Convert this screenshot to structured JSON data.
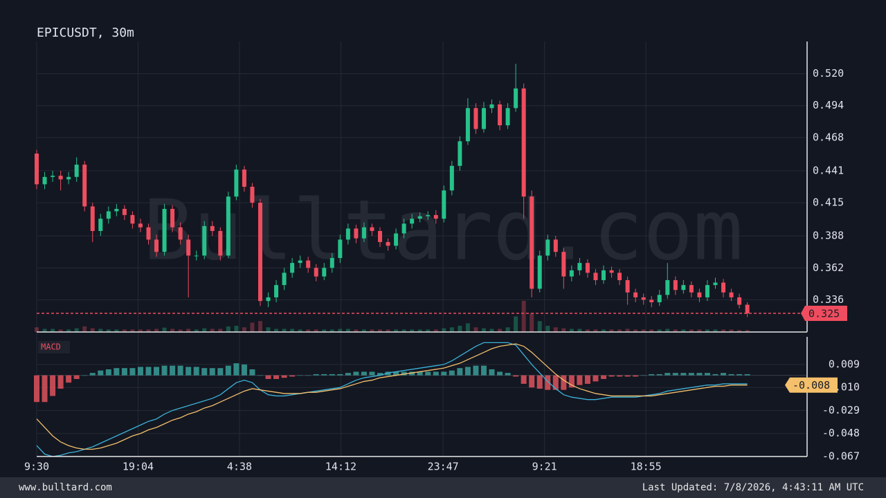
{
  "chart_data": [
    {
      "type": "candlestick",
      "title": "EPICUSDT, 30m",
      "watermark": "Bulltard.com",
      "xlim": [
        0,
        96.4
      ],
      "xticks": [
        {
          "value": 0,
          "label": "9:30"
        },
        {
          "value": 12.7,
          "label": "19:04"
        },
        {
          "value": 25.4,
          "label": "4:38"
        },
        {
          "value": 38.1,
          "label": "14:12"
        },
        {
          "value": 50.9,
          "label": "23:47"
        },
        {
          "value": 63.6,
          "label": "9:21"
        },
        {
          "value": 76.3,
          "label": "18:55"
        }
      ],
      "ylim": [
        0.3098,
        0.5462
      ],
      "yticks": [
        0.336,
        0.362,
        0.388,
        0.415,
        0.441,
        0.468,
        0.494,
        {
          "value": 0.52,
          "label": "0.520"
        }
      ],
      "grid": true,
      "up_color": "#26c28a",
      "down_color": "#ef4d5f",
      "open": [
        0.455,
        0.43,
        0.436,
        0.437,
        0.434,
        0.436,
        0.446,
        0.412,
        0.392,
        0.402,
        0.408,
        0.41,
        0.405,
        0.398,
        0.395,
        0.385,
        0.375,
        0.41,
        0.395,
        0.385,
        0.372,
        0.372,
        0.396,
        0.392,
        0.372,
        0.42,
        0.442,
        0.428,
        0.415,
        0.335,
        0.338,
        0.348,
        0.358,
        0.366,
        0.368,
        0.362,
        0.355,
        0.362,
        0.37,
        0.385,
        0.394,
        0.386,
        0.395,
        0.392,
        0.383,
        0.38,
        0.39,
        0.398,
        0.402,
        0.404,
        0.405,
        0.402,
        0.425,
        0.445,
        0.465,
        0.492,
        0.475,
        0.492,
        0.495,
        0.478,
        0.492,
        0.508,
        0.42,
        0.345,
        0.372,
        0.385,
        0.375,
        0.355,
        0.36,
        0.366,
        0.358,
        0.352,
        0.36,
        0.358,
        0.352,
        0.342,
        0.338,
        0.336,
        0.334,
        0.34,
        0.352,
        0.344,
        0.348,
        0.342,
        0.338,
        0.348,
        0.35,
        0.342,
        0.338,
        0.332
      ],
      "high": [
        0.458,
        0.44,
        0.441,
        0.441,
        0.44,
        0.452,
        0.449,
        0.415,
        0.406,
        0.412,
        0.414,
        0.413,
        0.408,
        0.402,
        0.398,
        0.389,
        0.414,
        0.413,
        0.399,
        0.389,
        0.376,
        0.4,
        0.4,
        0.395,
        0.424,
        0.446,
        0.445,
        0.431,
        0.418,
        0.342,
        0.352,
        0.362,
        0.37,
        0.372,
        0.371,
        0.365,
        0.366,
        0.374,
        0.389,
        0.398,
        0.397,
        0.399,
        0.398,
        0.395,
        0.386,
        0.394,
        0.402,
        0.406,
        0.407,
        0.408,
        0.409,
        0.429,
        0.449,
        0.469,
        0.5,
        0.496,
        0.497,
        0.499,
        0.498,
        0.496,
        0.528,
        0.512,
        0.425,
        0.376,
        0.389,
        0.388,
        0.378,
        0.364,
        0.37,
        0.369,
        0.361,
        0.364,
        0.363,
        0.361,
        0.355,
        0.345,
        0.341,
        0.339,
        0.344,
        0.366,
        0.355,
        0.352,
        0.351,
        0.345,
        0.352,
        0.354,
        0.353,
        0.345,
        0.341,
        0.334
      ],
      "low": [
        0.426,
        0.426,
        0.432,
        0.425,
        0.43,
        0.432,
        0.408,
        0.383,
        0.388,
        0.398,
        0.404,
        0.401,
        0.394,
        0.391,
        0.381,
        0.371,
        0.372,
        0.391,
        0.381,
        0.338,
        0.368,
        0.369,
        0.388,
        0.368,
        0.37,
        0.417,
        0.424,
        0.411,
        0.331,
        0.33,
        0.334,
        0.344,
        0.354,
        0.362,
        0.358,
        0.351,
        0.352,
        0.358,
        0.366,
        0.381,
        0.382,
        0.383,
        0.388,
        0.379,
        0.376,
        0.377,
        0.386,
        0.394,
        0.399,
        0.401,
        0.398,
        0.399,
        0.421,
        0.441,
        0.462,
        0.471,
        0.472,
        0.488,
        0.474,
        0.475,
        0.489,
        0.402,
        0.338,
        0.342,
        0.368,
        0.371,
        0.345,
        0.351,
        0.356,
        0.354,
        0.348,
        0.349,
        0.354,
        0.348,
        0.332,
        0.334,
        0.332,
        0.33,
        0.331,
        0.337,
        0.34,
        0.341,
        0.338,
        0.334,
        0.335,
        0.345,
        0.338,
        0.335,
        0.329,
        0.322
      ],
      "close": [
        0.43,
        0.436,
        0.437,
        0.434,
        0.436,
        0.446,
        0.412,
        0.392,
        0.402,
        0.408,
        0.41,
        0.405,
        0.398,
        0.395,
        0.385,
        0.375,
        0.41,
        0.395,
        0.385,
        0.372,
        0.372,
        0.396,
        0.392,
        0.372,
        0.42,
        0.442,
        0.428,
        0.415,
        0.335,
        0.338,
        0.348,
        0.358,
        0.366,
        0.368,
        0.362,
        0.355,
        0.362,
        0.37,
        0.385,
        0.394,
        0.386,
        0.395,
        0.392,
        0.383,
        0.38,
        0.39,
        0.398,
        0.402,
        0.404,
        0.405,
        0.402,
        0.425,
        0.445,
        0.465,
        0.492,
        0.475,
        0.492,
        0.495,
        0.478,
        0.492,
        0.508,
        0.42,
        0.345,
        0.372,
        0.385,
        0.375,
        0.355,
        0.36,
        0.366,
        0.358,
        0.352,
        0.36,
        0.358,
        0.352,
        0.342,
        0.338,
        0.336,
        0.334,
        0.34,
        0.352,
        0.344,
        0.348,
        0.342,
        0.338,
        0.348,
        0.35,
        0.342,
        0.338,
        0.332,
        0.325
      ],
      "volume": [
        15,
        10,
        10,
        8,
        8,
        12,
        18,
        12,
        10,
        8,
        8,
        8,
        8,
        8,
        8,
        10,
        14,
        10,
        8,
        10,
        8,
        12,
        10,
        10,
        18,
        20,
        15,
        30,
        35,
        15,
        10,
        10,
        10,
        8,
        8,
        8,
        8,
        8,
        10,
        10,
        8,
        8,
        8,
        8,
        8,
        8,
        8,
        8,
        8,
        8,
        8,
        12,
        15,
        20,
        28,
        15,
        12,
        10,
        10,
        15,
        50,
        100,
        60,
        35,
        20,
        15,
        12,
        10,
        10,
        8,
        8,
        8,
        8,
        8,
        10,
        8,
        8,
        8,
        8,
        10,
        8,
        8,
        8,
        8,
        8,
        8,
        8,
        8,
        6,
        6
      ],
      "last_price": 0.325
    },
    {
      "type": "macd",
      "label": "MACD",
      "ylim": [
        -0.067,
        0.0318
      ],
      "yticks": [
        -0.067,
        -0.048,
        -0.029,
        {
          "value": -0.01,
          "label": "-0.010"
        },
        0.009
      ],
      "histogram": [
        -0.022,
        -0.022,
        -0.017,
        -0.011,
        -0.006,
        -0.003,
        0.0,
        0.002,
        0.004,
        0.005,
        0.006,
        0.006,
        0.006,
        0.007,
        0.007,
        0.007,
        0.008,
        0.008,
        0.008,
        0.007,
        0.007,
        0.006,
        0.006,
        0.006,
        0.008,
        0.01,
        0.009,
        0.005,
        0.0,
        -0.003,
        -0.003,
        -0.002,
        -0.001,
        0.0,
        0.0,
        0.001,
        0.001,
        0.001,
        0.001,
        0.002,
        0.003,
        0.003,
        0.003,
        0.002,
        0.003,
        0.003,
        0.003,
        0.003,
        0.003,
        0.003,
        0.003,
        0.003,
        0.004,
        0.006,
        0.007,
        0.008,
        0.008,
        0.005,
        0.003,
        0.002,
        -0.001,
        -0.007,
        -0.01,
        -0.011,
        -0.012,
        -0.012,
        -0.012,
        -0.01,
        -0.008,
        -0.007,
        -0.005,
        -0.003,
        -0.001,
        -0.001,
        -0.001,
        -0.001,
        0.0,
        0.001,
        0.001,
        0.002,
        0.002,
        0.002,
        0.002,
        0.002,
        0.002,
        0.001,
        0.002,
        0.001,
        0.001,
        0.001
      ],
      "up_color": "#3a9e97",
      "down_color": "#e0525c",
      "series": [
        {
          "color": "#3bb3d9",
          "values": [
            -0.058,
            -0.065,
            -0.067,
            -0.066,
            -0.064,
            -0.063,
            -0.061,
            -0.059,
            -0.056,
            -0.053,
            -0.05,
            -0.047,
            -0.044,
            -0.041,
            -0.038,
            -0.036,
            -0.032,
            -0.029,
            -0.027,
            -0.025,
            -0.023,
            -0.021,
            -0.019,
            -0.016,
            -0.011,
            -0.006,
            -0.004,
            -0.006,
            -0.012,
            -0.016,
            -0.017,
            -0.017,
            -0.016,
            -0.015,
            -0.014,
            -0.013,
            -0.012,
            -0.011,
            -0.01,
            -0.007,
            -0.004,
            -0.002,
            -0.001,
            0.0,
            0.002,
            0.003,
            0.004,
            0.005,
            0.006,
            0.007,
            0.008,
            0.009,
            0.012,
            0.016,
            0.02,
            0.024,
            0.027,
            0.027,
            0.027,
            0.027,
            0.025,
            0.017,
            0.009,
            0.002,
            -0.005,
            -0.011,
            -0.016,
            -0.018,
            -0.019,
            -0.02,
            -0.02,
            -0.019,
            -0.018,
            -0.018,
            -0.018,
            -0.018,
            -0.017,
            -0.016,
            -0.015,
            -0.013,
            -0.012,
            -0.011,
            -0.01,
            -0.009,
            -0.008,
            -0.008,
            -0.007,
            -0.007,
            -0.007,
            -0.007
          ]
        },
        {
          "color": "#f5c06b",
          "values": [
            -0.036,
            -0.043,
            -0.05,
            -0.055,
            -0.058,
            -0.06,
            -0.061,
            -0.061,
            -0.06,
            -0.058,
            -0.056,
            -0.053,
            -0.05,
            -0.048,
            -0.045,
            -0.043,
            -0.04,
            -0.037,
            -0.035,
            -0.032,
            -0.03,
            -0.027,
            -0.025,
            -0.022,
            -0.019,
            -0.016,
            -0.013,
            -0.011,
            -0.012,
            -0.013,
            -0.014,
            -0.015,
            -0.015,
            -0.015,
            -0.014,
            -0.014,
            -0.013,
            -0.012,
            -0.011,
            -0.009,
            -0.007,
            -0.005,
            -0.004,
            -0.002,
            -0.001,
            0.0,
            0.001,
            0.002,
            0.003,
            0.004,
            0.005,
            0.006,
            0.008,
            0.01,
            0.013,
            0.016,
            0.019,
            0.022,
            0.024,
            0.025,
            0.026,
            0.024,
            0.019,
            0.013,
            0.007,
            0.001,
            -0.004,
            -0.008,
            -0.011,
            -0.013,
            -0.015,
            -0.016,
            -0.017,
            -0.017,
            -0.017,
            -0.017,
            -0.017,
            -0.017,
            -0.016,
            -0.015,
            -0.014,
            -0.013,
            -0.012,
            -0.011,
            -0.01,
            -0.009,
            -0.009,
            -0.008,
            -0.008,
            -0.008
          ]
        }
      ],
      "last_value": -0.008
    }
  ],
  "footer": {
    "site": "www.bulltard.com",
    "updated": "Last Updated: 7/8/2026, 4:43:11 AM UTC"
  }
}
